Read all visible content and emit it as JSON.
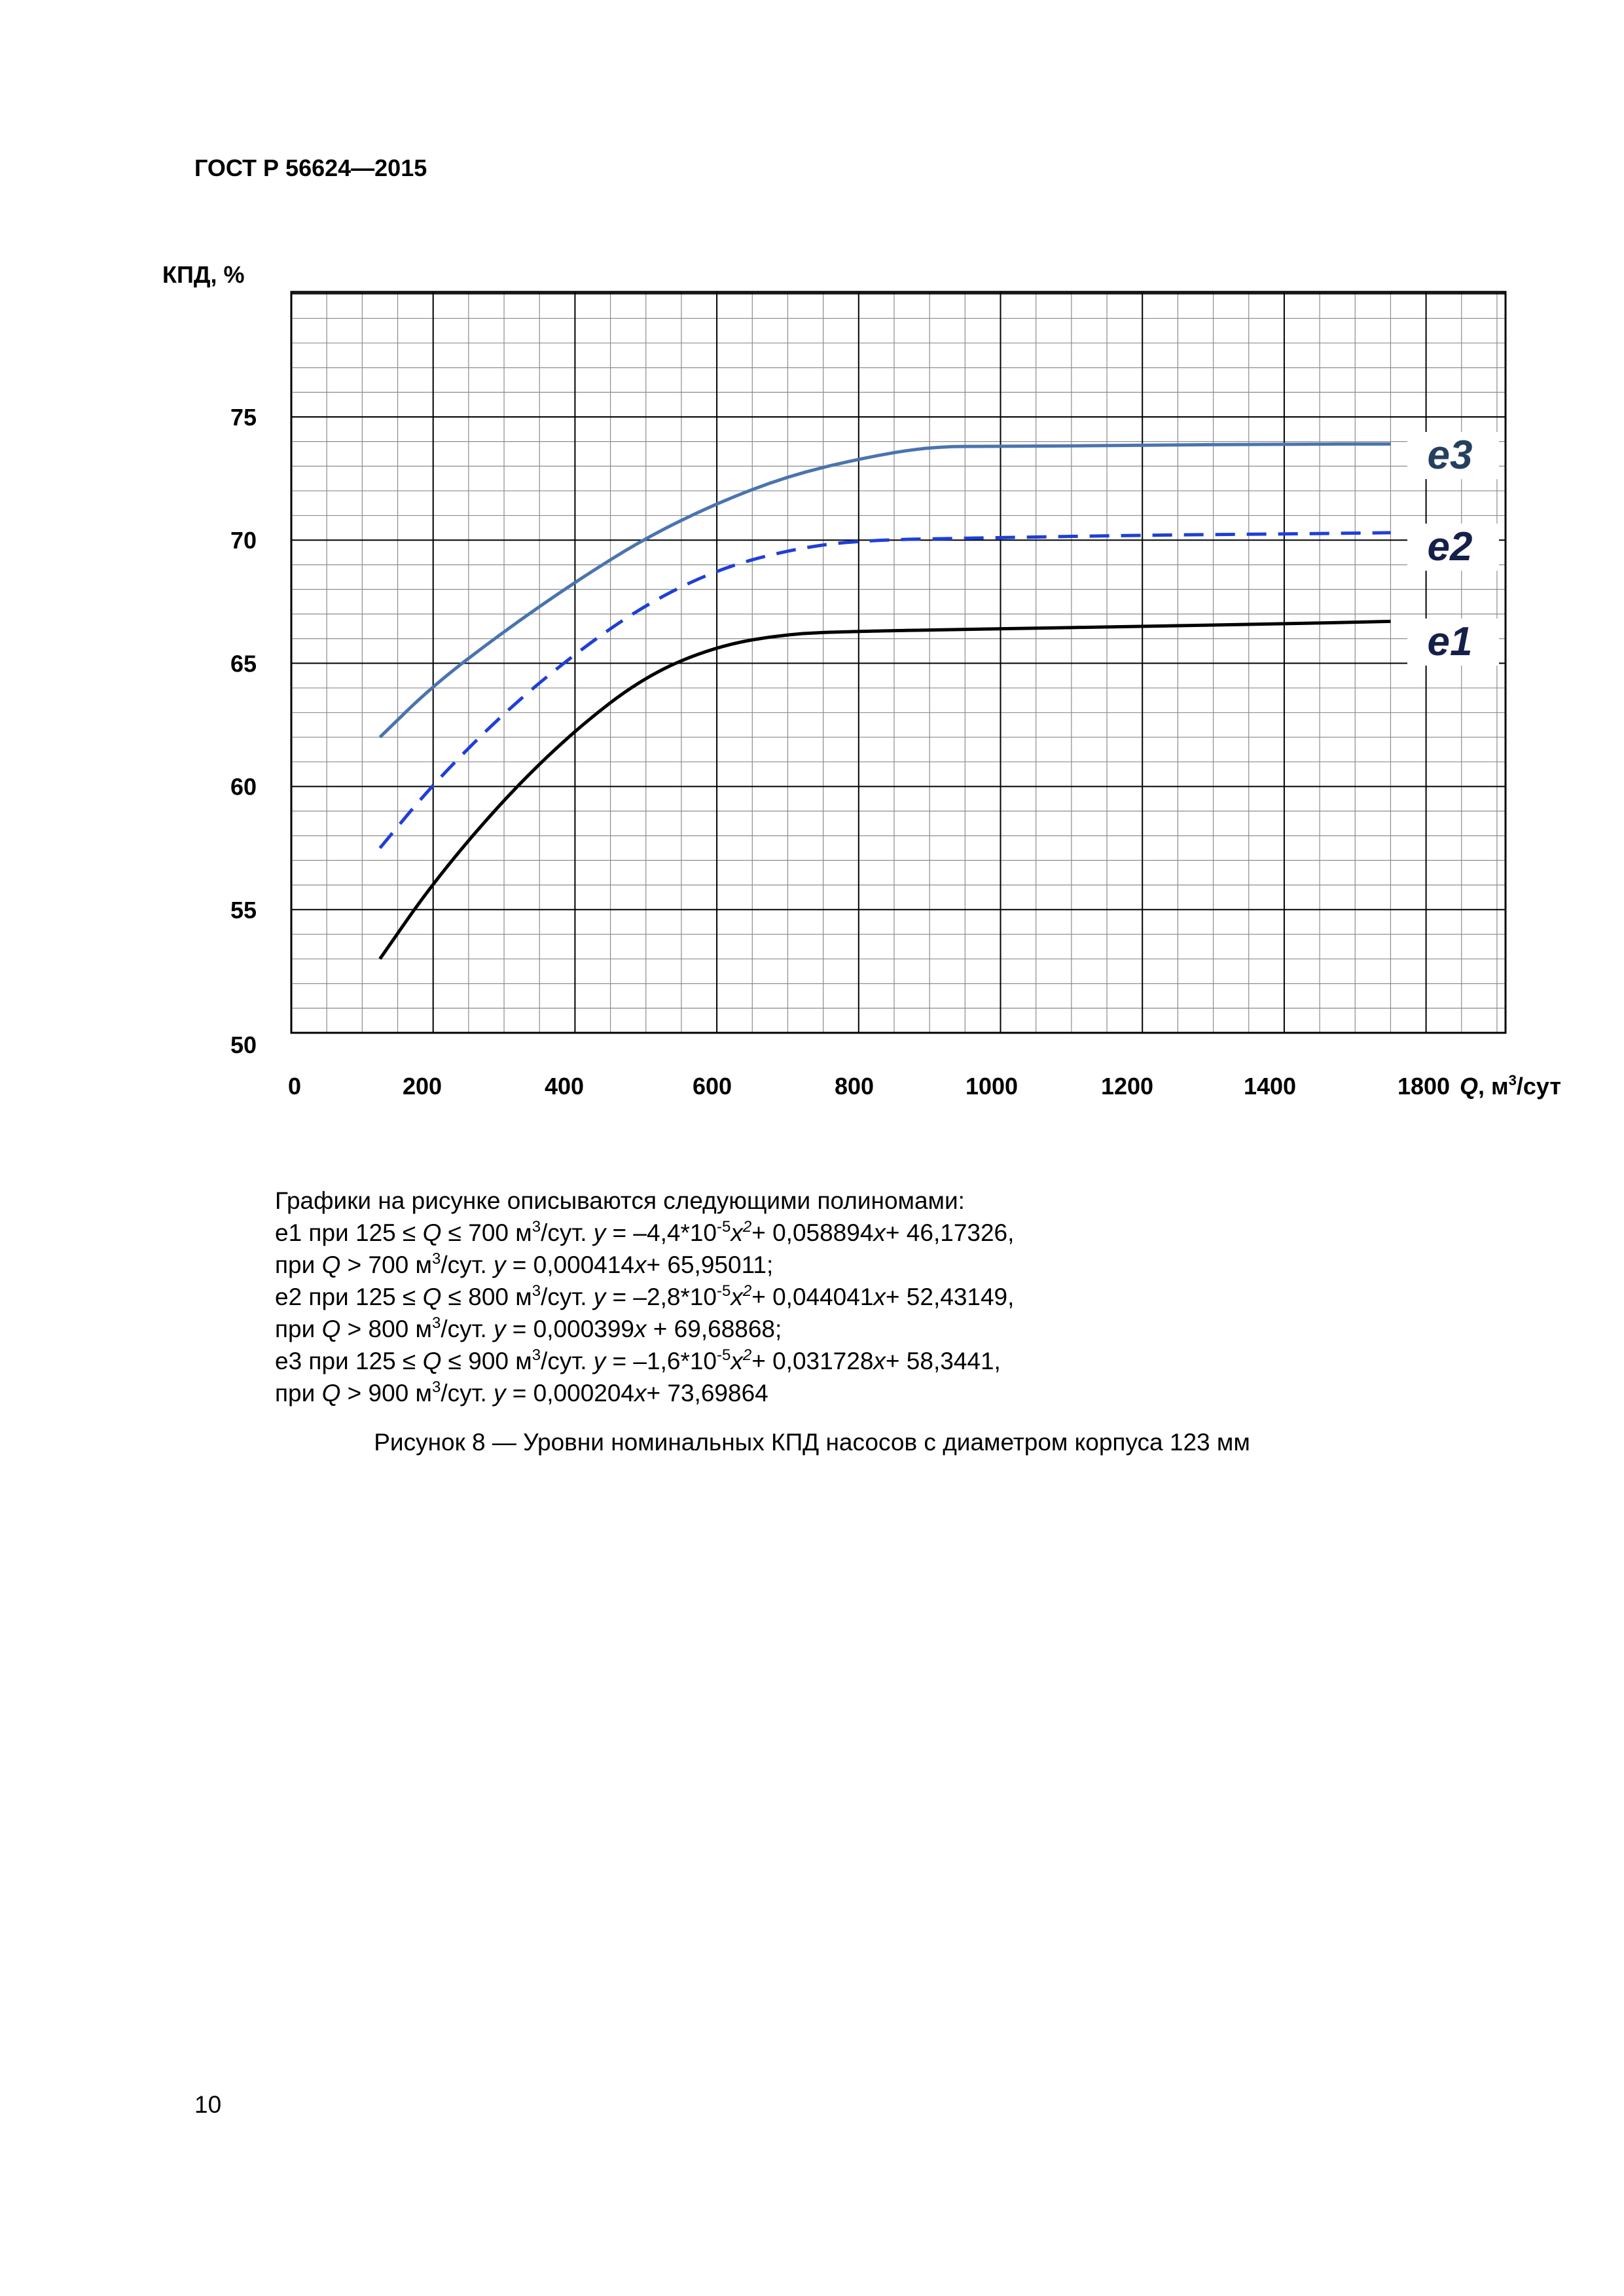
{
  "header": {
    "doc_code": "ГОСТ Р 56624—2015"
  },
  "chart_data": {
    "type": "line",
    "ylabel": "КПД, %",
    "xlabel_var": "Q",
    "xlabel_unit": ", м³/сут",
    "xlim": [
      0,
      1700
    ],
    "ylim": [
      50,
      80
    ],
    "x_ticks": [
      0,
      200,
      400,
      600,
      800,
      1000,
      1200,
      1400,
      1800
    ],
    "x_tick_labels": [
      "0",
      "200",
      "400",
      "600",
      "800",
      "1000",
      "1200",
      "1400",
      "1800"
    ],
    "y_ticks": [
      50,
      55,
      60,
      65,
      70,
      75
    ],
    "y_tick_labels": [
      "50",
      "55",
      "60",
      "65",
      "70",
      "75"
    ],
    "grid": true,
    "series": [
      {
        "name": "e1",
        "color": "#000000",
        "style": "solid",
        "x": [
          125,
          200,
          300,
          400,
          500,
          600,
          700,
          800,
          1000,
          1200,
          1400,
          1550
        ],
        "y": [
          53.0,
          56.1,
          59.5,
          62.3,
          64.5,
          65.7,
          66.2,
          66.3,
          66.4,
          66.5,
          66.6,
          66.7
        ]
      },
      {
        "name": "e2",
        "color": "#1f3fd6",
        "style": "dashed",
        "x": [
          125,
          200,
          300,
          400,
          500,
          600,
          700,
          800,
          1000,
          1200,
          1400,
          1550
        ],
        "y": [
          57.5,
          60.1,
          63.0,
          65.4,
          67.4,
          68.8,
          69.6,
          70.0,
          70.1,
          70.2,
          70.25,
          70.3
        ]
      },
      {
        "name": "e3",
        "color": "#4a74ae",
        "style": "solid",
        "x": [
          125,
          200,
          300,
          400,
          500,
          600,
          700,
          800,
          900,
          1000,
          1200,
          1400,
          1550
        ],
        "y": [
          62.0,
          64.1,
          66.3,
          68.3,
          70.1,
          71.5,
          72.6,
          73.3,
          73.8,
          73.8,
          73.85,
          73.9,
          73.9
        ]
      }
    ]
  },
  "legend_text": {
    "intro": "Графики на рисунке описываются следующими полиномами:",
    "lines": [
      [
        "е1 при 125 ≤ ",
        "Q",
        " ≤ 700 м",
        "3",
        "/сут.  ",
        "y",
        " = –4,4*10",
        "-5",
        "x",
        "2",
        "+ 0,058894",
        "x",
        "+ 46,17326,"
      ],
      [
        "при ",
        "Q",
        " > 700 м",
        "3",
        "/сут.  ",
        "y",
        " = 0,000414",
        "x",
        "+ 65,95011;"
      ],
      [
        "е2 при 125 ≤ ",
        "Q",
        " ≤ 800 м",
        "3",
        "/сут.  ",
        "y",
        " = –2,8*10",
        "-5",
        "x",
        "2",
        "+ 0,044041",
        "x",
        "+ 52,43149,"
      ],
      [
        "при ",
        "Q",
        " > 800 м",
        "3",
        "/сут.  ",
        "y",
        " = 0,000399",
        "x",
        " + 69,68868;"
      ],
      [
        "е3 при 125 ≤ ",
        "Q",
        " ≤ 900 м",
        "3",
        "/сут.  ",
        "y",
        " = –1,6*10",
        "-5",
        "x",
        "2",
        "+ 0,031728",
        "x",
        "+ 58,3441,"
      ],
      [
        "при ",
        "Q",
        " > 900 м",
        "3",
        "/сут.  ",
        "y",
        " = 0,000204",
        "x",
        "+ 73,69864"
      ]
    ]
  },
  "caption": "Рисунок 8 — Уровни номинальных КПД насосов с диаметром корпуса 123 мм",
  "page_number": "10"
}
